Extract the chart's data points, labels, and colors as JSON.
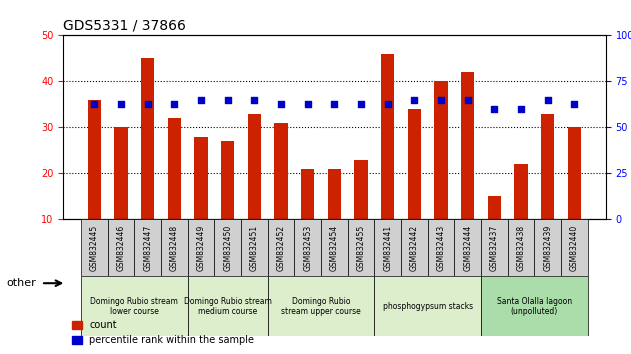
{
  "title": "GDS5331 / 37866",
  "samples": [
    "GSM832445",
    "GSM832446",
    "GSM832447",
    "GSM832448",
    "GSM832449",
    "GSM832450",
    "GSM832451",
    "GSM832452",
    "GSM832453",
    "GSM832454",
    "GSM832455",
    "GSM832441",
    "GSM832442",
    "GSM832443",
    "GSM832444",
    "GSM832437",
    "GSM832438",
    "GSM832439",
    "GSM832440"
  ],
  "counts": [
    36,
    30,
    45,
    32,
    28,
    27,
    33,
    31,
    21,
    21,
    23,
    46,
    34,
    40,
    42,
    15,
    22,
    33,
    30
  ],
  "percentiles": [
    63,
    63,
    63,
    63,
    65,
    65,
    65,
    63,
    63,
    63,
    63,
    63,
    65,
    65,
    65,
    60,
    60,
    65,
    63
  ],
  "bar_color": "#cc2200",
  "dot_color": "#0000cc",
  "ylim_left": [
    10,
    50
  ],
  "ylim_right": [
    0,
    100
  ],
  "yticks_left": [
    10,
    20,
    30,
    40,
    50
  ],
  "yticks_right": [
    0,
    25,
    50,
    75,
    100
  ],
  "groups": [
    {
      "label": "Domingo Rubio stream\nlower course",
      "start": 0,
      "end": 3,
      "color": "#ddeecc"
    },
    {
      "label": "Domingo Rubio stream\nmedium course",
      "start": 4,
      "end": 6,
      "color": "#ddeecc"
    },
    {
      "label": "Domingo Rubio\nstream upper course",
      "start": 7,
      "end": 10,
      "color": "#ddeecc"
    },
    {
      "label": "phosphogypsum stacks",
      "start": 11,
      "end": 14,
      "color": "#ddeecc"
    },
    {
      "label": "Santa Olalla lagoon\n(unpolluted)",
      "start": 15,
      "end": 18,
      "color": "#aaddaa"
    }
  ],
  "legend_count_label": "count",
  "legend_pct_label": "percentile rank within the sample",
  "other_label": "other",
  "bar_width": 0.5
}
